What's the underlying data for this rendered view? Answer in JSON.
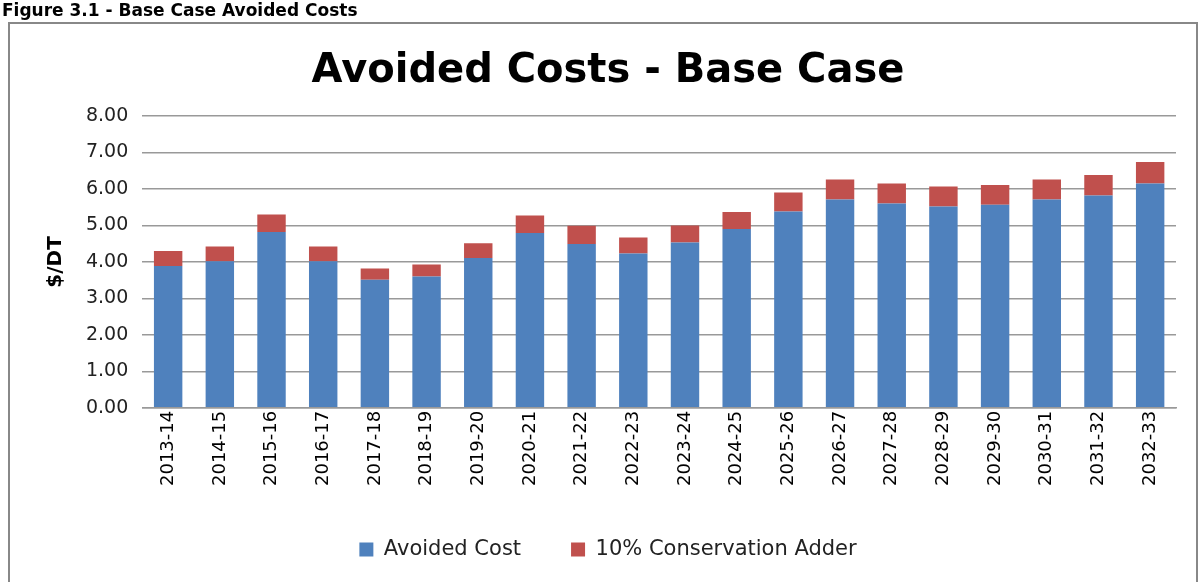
{
  "chart_data": {
    "type": "bar",
    "title": "Avoided Costs - Base Case",
    "ylabel": "$/DT",
    "annotations": [
      "Figure 3.1 - Base Case Avoided Costs"
    ],
    "categories": [
      "2013-14",
      "2014-15",
      "2015-16",
      "2016-17",
      "2017-18",
      "2018-19",
      "2019-20",
      "2020-21",
      "2021-22",
      "2022-23",
      "2023-24",
      "2024-25",
      "2025-26",
      "2026-27",
      "2027-28",
      "2028-29",
      "2029-30",
      "2030-31",
      "2031-32",
      "2032-33"
    ],
    "stacked": true,
    "series": [
      {
        "name": "Avoided Cost",
        "color": "#4f81bd",
        "values": [
          3.89,
          4.02,
          4.82,
          4.02,
          3.51,
          3.6,
          4.11,
          4.79,
          4.49,
          4.23,
          4.53,
          4.9,
          5.38,
          5.71,
          5.6,
          5.52,
          5.57,
          5.71,
          5.82,
          6.15
        ]
      },
      {
        "name": "10% Conservation Adder",
        "color": "#c0504d",
        "values": [
          0.41,
          0.4,
          0.48,
          0.4,
          0.31,
          0.33,
          0.4,
          0.48,
          0.5,
          0.44,
          0.47,
          0.47,
          0.52,
          0.55,
          0.55,
          0.55,
          0.54,
          0.55,
          0.56,
          0.59
        ]
      }
    ],
    "ylim": [
      0,
      8
    ],
    "yticks": [
      {
        "value": 0,
        "label": "0.00"
      },
      {
        "value": 1,
        "label": "1.00"
      },
      {
        "value": 2,
        "label": "2.00"
      },
      {
        "value": 3,
        "label": "3.00"
      },
      {
        "value": 4,
        "label": "4.00"
      },
      {
        "value": 5,
        "label": "5.00"
      },
      {
        "value": 6,
        "label": "6.00"
      },
      {
        "value": 7,
        "label": "7.00"
      },
      {
        "value": 8,
        "label": "8.00"
      }
    ],
    "grid": "y",
    "legend": "bottom"
  }
}
